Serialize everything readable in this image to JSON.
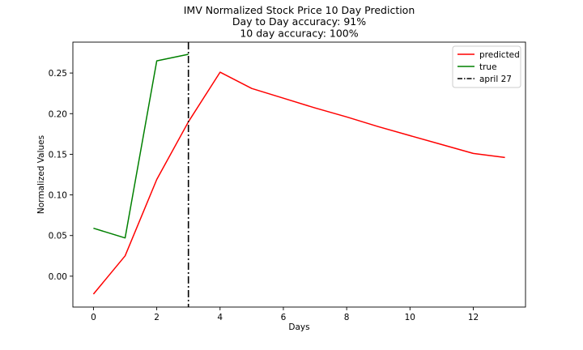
{
  "chart_data": {
    "type": "line",
    "title_lines": [
      "IMV Normalized Stock Price 10 Day Prediction",
      "Day to Day accuracy: 91%",
      "10 day accuracy: 100%"
    ],
    "xlabel": "Days",
    "ylabel": "Normalized Values",
    "xlim": [
      -0.65,
      13.65
    ],
    "ylim": [
      -0.038,
      0.288
    ],
    "xticks": [
      0,
      2,
      4,
      6,
      8,
      10,
      12
    ],
    "xtick_labels": [
      "0",
      "2",
      "4",
      "6",
      "8",
      "10",
      "12"
    ],
    "yticks": [
      0.0,
      0.05,
      0.1,
      0.15,
      0.2,
      0.25
    ],
    "ytick_labels": [
      "0.00",
      "0.05",
      "0.10",
      "0.15",
      "0.20",
      "0.25"
    ],
    "grid": false,
    "legend_position": "top-right",
    "series": [
      {
        "name": "predicted",
        "color": "#ff0000",
        "x": [
          0,
          1,
          2,
          3,
          4,
          5,
          6,
          7,
          8,
          9,
          10,
          11,
          12,
          13
        ],
        "y": [
          -0.022,
          0.025,
          0.119,
          0.19,
          0.251,
          0.231,
          0.219,
          0.207,
          0.196,
          0.184,
          0.173,
          0.162,
          0.151,
          0.146
        ]
      },
      {
        "name": "true",
        "color": "#008000",
        "x": [
          0,
          1,
          2,
          3
        ],
        "y": [
          0.059,
          0.047,
          0.265,
          0.273
        ]
      }
    ],
    "vline": {
      "name": "april 27",
      "x": 3,
      "color": "#000000",
      "style": "dash-dot"
    }
  }
}
